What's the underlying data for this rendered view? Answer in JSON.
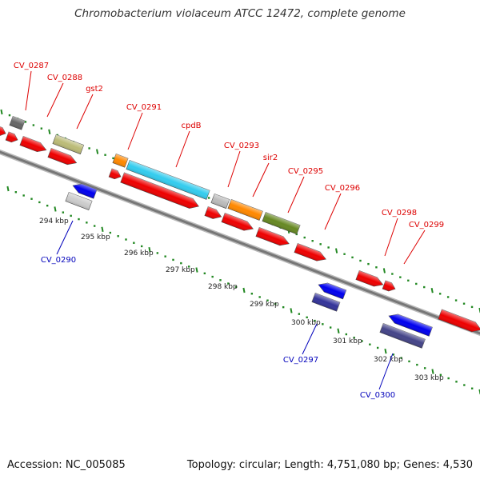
{
  "title": "Chromobacterium violaceum ATCC 12472, complete genome",
  "footer": {
    "accession": "Accession: NC_005085",
    "summary": "Topology: circular; Length: 4,751,080 bp; Genes: 4,530"
  },
  "colors": {
    "forward_label": "#dd0000",
    "reverse_label": "#0000bb",
    "tick": "#228822",
    "backbone": "#888888",
    "text": "#222222"
  },
  "ruler": [
    "294 kbp",
    "295 kbp",
    "296 kbp",
    "297 kbp",
    "298 kbp",
    "299 kbp",
    "300 kbp",
    "301 kbp",
    "302 kbp",
    "303 kbp"
  ],
  "forward_labels": [
    "CV_0287",
    "CV_0288",
    "gst2",
    "CV_0291",
    "cpdB",
    "CV_0293",
    "sir2",
    "CV_0295",
    "CV_0296",
    "CV_0298",
    "CV_0299"
  ],
  "reverse_labels": [
    "CV_0290",
    "CV_0297",
    "CV_0300"
  ]
}
